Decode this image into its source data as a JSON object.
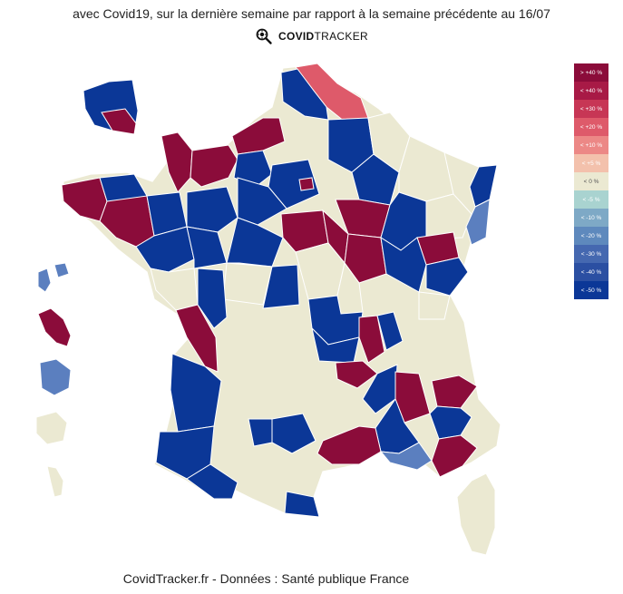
{
  "header": {
    "title": "avec Covid19, sur la dernière semaine par rapport à la semaine précédente au 16/07",
    "brand_bold": "COVID",
    "brand_light": "TRACKER",
    "brand_icon": "magnifier-virus-icon"
  },
  "legend": {
    "items": [
      {
        "label": "> +40 %",
        "color": "#8b0c3a",
        "text_color": "#ffffff"
      },
      {
        "label": "< +40 %",
        "color": "#a81a46",
        "text_color": "#ffffff"
      },
      {
        "label": "< +30 %",
        "color": "#c73655",
        "text_color": "#ffffff"
      },
      {
        "label": "< +20 %",
        "color": "#de5a6a",
        "text_color": "#ffffff"
      },
      {
        "label": "< +10 %",
        "color": "#ec8886",
        "text_color": "#ffffff"
      },
      {
        "label": "< +5 %",
        "color": "#f3c1ac",
        "text_color": "#ffffff"
      },
      {
        "label": "< 0 %",
        "color": "#ebe9d2",
        "text_color": "#555555"
      },
      {
        "label": "< -5 %",
        "color": "#a9d3d0",
        "text_color": "#ffffff"
      },
      {
        "label": "< -10 %",
        "color": "#7ea9c6",
        "text_color": "#ffffff"
      },
      {
        "label": "< -20 %",
        "color": "#5e89bd",
        "text_color": "#ffffff"
      },
      {
        "label": "< -30 %",
        "color": "#4568b0",
        "text_color": "#ffffff"
      },
      {
        "label": "< -40 %",
        "color": "#2b4fa2",
        "text_color": "#ffffff"
      },
      {
        "label": "< -50 %",
        "color": "#0b3797",
        "text_color": "#ffffff"
      }
    ]
  },
  "map": {
    "colors": {
      "increase_strong": "#8b0c3a",
      "increase_mid": "#de5a6a",
      "stable": "#ebe9d2",
      "decrease_mid": "#5b7fbf",
      "decrease_strong": "#0b3797",
      "border": "#ffffff"
    }
  },
  "footer": {
    "source": "CovidTracker.fr - Données : Santé publique France"
  }
}
